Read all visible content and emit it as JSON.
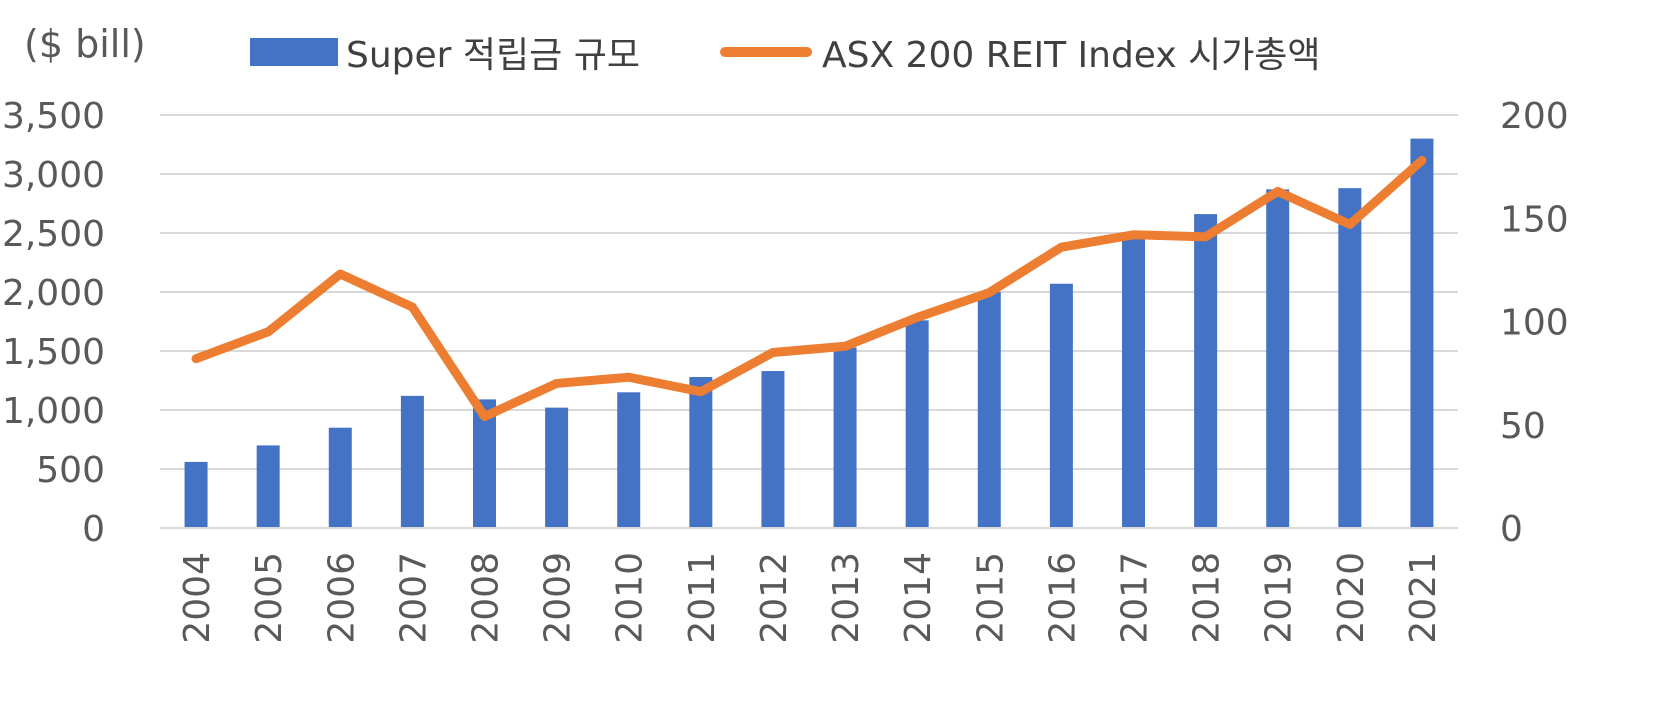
{
  "unit_label": "($ bill)",
  "legend": {
    "bar_label": "Super 적립금 규모",
    "line_label": "ASX 200 REIT Index 시가총액"
  },
  "colors": {
    "bar": "#4472c4",
    "line": "#ed7d31",
    "grid": "#d9d9d9",
    "text": "#595959"
  },
  "chart_data": {
    "type": "bar",
    "categories": [
      "2004",
      "2005",
      "2006",
      "2007",
      "2008",
      "2009",
      "2010",
      "2011",
      "2012",
      "2013",
      "2014",
      "2015",
      "2016",
      "2017",
      "2018",
      "2019",
      "2020",
      "2021"
    ],
    "series": [
      {
        "name": "Super 적립금 규모",
        "type": "bar",
        "axis": "left",
        "values": [
          560,
          700,
          850,
          1120,
          1090,
          1020,
          1150,
          1280,
          1330,
          1530,
          1760,
          2000,
          2070,
          2480,
          2660,
          2870,
          2880,
          3300
        ]
      },
      {
        "name": "ASX 200 REIT Index 시가총액",
        "type": "line",
        "axis": "right",
        "values": [
          82,
          95,
          123,
          107,
          54,
          70,
          73,
          66,
          85,
          88,
          102,
          114,
          136,
          142,
          141,
          163,
          147,
          178
        ]
      }
    ],
    "y_left": {
      "ylim": [
        0,
        3500
      ],
      "ticks": [
        "0",
        "500",
        "1,000",
        "1,500",
        "2,000",
        "2,500",
        "3,000",
        "3,500"
      ]
    },
    "y_right": {
      "ylim": [
        0,
        200
      ],
      "ticks": [
        "0",
        "50",
        "100",
        "150",
        "200"
      ]
    },
    "grid": true,
    "legend_position": "top"
  }
}
